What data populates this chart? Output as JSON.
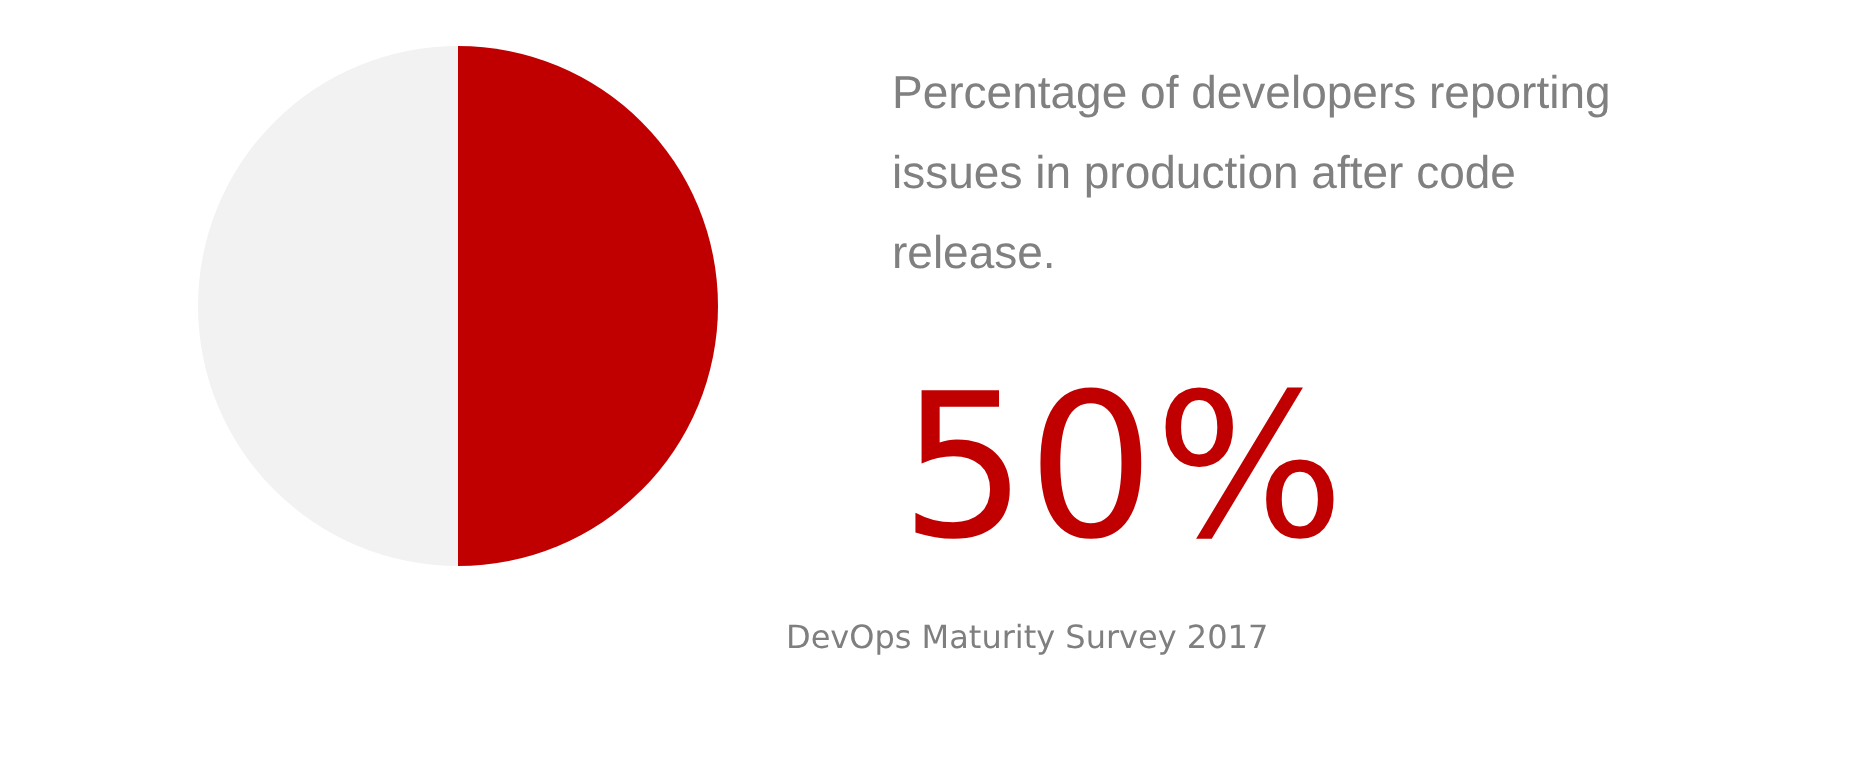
{
  "chart_data": {
    "type": "pie",
    "title": "Percentage of developers reporting issues in production after code release.",
    "categories": [
      null,
      null
    ],
    "values": [
      50,
      50
    ],
    "colors": [
      "#c00000",
      "#f2f2f2"
    ],
    "value_labels": [
      "50%",
      null
    ],
    "annotations": [
      "DevOps Maturity Survey 2017"
    ],
    "legend": false
  }
}
